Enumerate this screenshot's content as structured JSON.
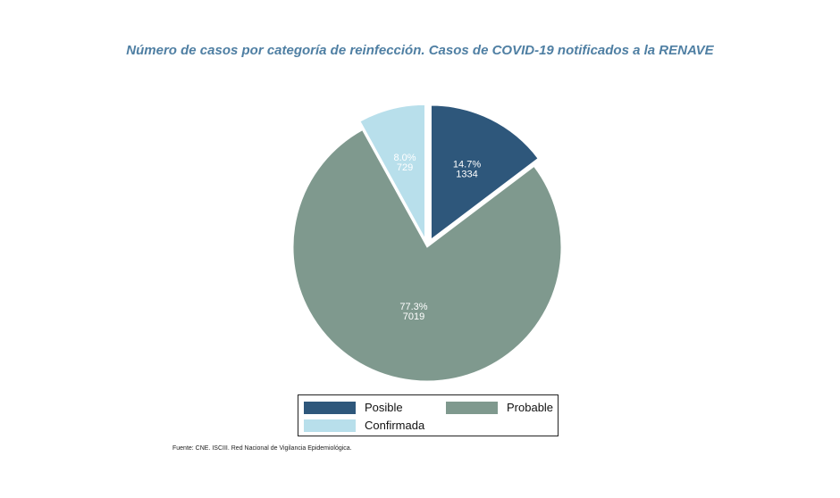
{
  "chart_data": {
    "type": "pie",
    "title": "Número de casos por categoría de reinfección. Casos de COVID-19 notificados a la RENAVE",
    "slices": [
      {
        "name": "Posible",
        "value": 1334,
        "percent_label": "14.7%",
        "value_label": "1334",
        "color": "#2e577b",
        "exploded": true
      },
      {
        "name": "Probable",
        "value": 7019,
        "percent_label": "77.3%",
        "value_label": "7019",
        "color": "#7f998e",
        "exploded": false
      },
      {
        "name": "Confirmada",
        "value": 729,
        "percent_label": "8.0%",
        "value_label": "729",
        "color": "#b8dfeb",
        "exploded": true
      }
    ],
    "legend": {
      "placement": "bottom",
      "items": [
        "Posible",
        "Probable",
        "Confirmada"
      ]
    }
  },
  "footer": {
    "source": "Fuente: CNE. ISCIII. Red Nacional de Vigilancia Epidemiológica."
  }
}
